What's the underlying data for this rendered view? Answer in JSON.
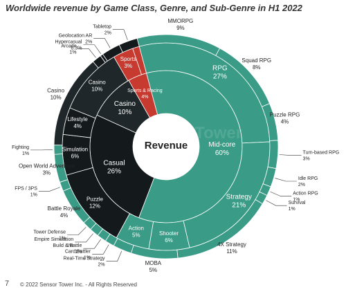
{
  "chart_data": {
    "type": "sunburst",
    "title": "Worldwide revenue by Game Class, Genre, and Sub-Genre in H1 2022",
    "center_label": "Revenue",
    "watermark": "SensorTower",
    "colors": {
      "midcore": "#3a9c87",
      "casual": "#141a1c",
      "casino": "#1f272a",
      "sports": "#c73a30",
      "text_dark": "#222222"
    },
    "rings": {
      "class": [
        {
          "name": "Mid-core",
          "pct": "60%",
          "value": 60
        },
        {
          "name": "Casual",
          "pct": "26%",
          "value": 26
        },
        {
          "name": "Casino",
          "pct": "10%",
          "value": 10
        },
        {
          "name": "Sports & Racing",
          "pct": "4%",
          "value": 4
        }
      ],
      "genre": [
        {
          "name": "RPG",
          "pct": "27%",
          "value": 27
        },
        {
          "name": "Strategy",
          "pct": "21%",
          "value": 21
        },
        {
          "name": "Shooter",
          "pct": "6%",
          "value": 6
        },
        {
          "name": "Action",
          "pct": "5%",
          "value": 5
        },
        {
          "name": "Puzzle",
          "pct": "12%",
          "value": 12
        },
        {
          "name": "Simulation",
          "pct": "6%",
          "value": 6
        },
        {
          "name": "Lifestyle",
          "pct": "4%",
          "value": 4
        },
        {
          "name": "Casino",
          "pct": "10%",
          "value": 10
        },
        {
          "name": "Sports",
          "pct": "3%",
          "value": 3
        },
        {
          "name": "Racing",
          "pct": "1%",
          "value": 1
        }
      ],
      "subgenre": [
        {
          "name": "MMORPG",
          "pct": "9%",
          "value": 9
        },
        {
          "name": "Squad RPG",
          "pct": "8%",
          "value": 8
        },
        {
          "name": "Puzzle RPG",
          "pct": "4%",
          "value": 4
        },
        {
          "name": "Turn-based RPG",
          "pct": "3%",
          "value": 3
        },
        {
          "name": "Idle RPG",
          "pct": "2%",
          "value": 2
        },
        {
          "name": "Action RPG",
          "pct": "1%",
          "value": 1
        },
        {
          "name": "Survival",
          "pct": "1%",
          "value": 1
        },
        {
          "name": "4X Strategy",
          "pct": "11%",
          "value": 11
        },
        {
          "name": "MOBA",
          "pct": "5%",
          "value": 5
        },
        {
          "name": "Real-Time Strategy",
          "pct": "2%",
          "value": 2
        },
        {
          "name": "Card Battler",
          "pct": "1%",
          "value": 1
        },
        {
          "name": "Build & Battle",
          "pct": "1%",
          "value": 1
        },
        {
          "name": "Empire Simulation",
          "pct": "1%",
          "value": 1
        },
        {
          "name": "Tower Defense",
          "pct": "1%",
          "value": 1
        },
        {
          "name": "Battle Royale",
          "pct": "4%",
          "value": 4
        },
        {
          "name": "FPS / 3PS",
          "pct": "1%",
          "value": 1
        },
        {
          "name": "Open World Adventure",
          "pct": "3%",
          "value": 3
        },
        {
          "name": "Fighting",
          "pct": "1%",
          "value": 1
        },
        {
          "name": "Casino",
          "pct": "10%",
          "value": 10
        },
        {
          "name": "Arcade",
          "pct": "1%",
          "value": 1
        },
        {
          "name": "Hypercasual",
          "pct": "0.3%",
          "value": 0.3
        },
        {
          "name": "Geolocation AR",
          "pct": "2%",
          "value": 2
        },
        {
          "name": "Tabletop",
          "pct": "2%",
          "value": 2
        }
      ]
    }
  },
  "footer": {
    "page_number": "7",
    "copyright": "© 2022 Sensor Tower Inc. - All Rights Reserved"
  }
}
